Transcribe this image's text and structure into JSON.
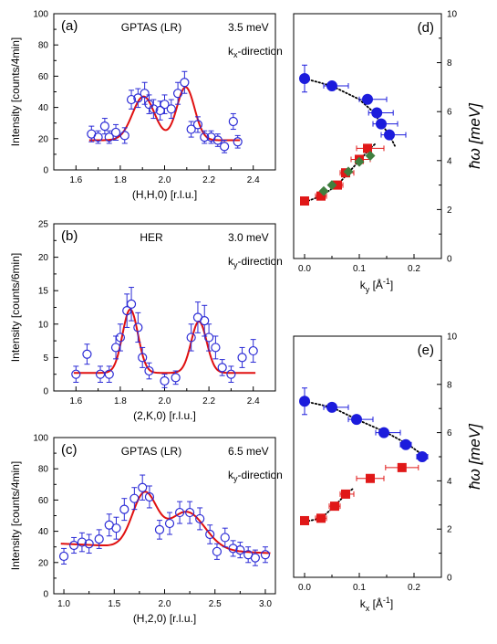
{
  "colors": {
    "open_marker": "#2b2bd6",
    "fit_line": "#e01010",
    "blue_marker": "#1c1cdc",
    "red_marker": "#e01818",
    "green_marker": "#3f7f3f",
    "dotted": "#000000"
  },
  "chart_data": [
    {
      "id": "a",
      "type": "scatter",
      "panel_label": "(a)",
      "annotations": [
        "GPTAS (LR)",
        "3.5 meV",
        "k",
        "x",
        "-direction"
      ],
      "xlabel": "(H,H,0) [r.l.u.]",
      "ylabel": "Intensity [counts/4min]",
      "xlim": [
        1.5,
        2.5
      ],
      "ylim": [
        0,
        100
      ],
      "xticks": [
        1.6,
        1.8,
        2.0,
        2.2,
        2.4
      ],
      "xtick_labels": [
        "1.6",
        "1.8",
        "2.0",
        "2.2",
        "2.4"
      ],
      "yticks": [
        0,
        20,
        40,
        60,
        80,
        100
      ],
      "ytick_labels": [
        "0",
        "20",
        "40",
        "60",
        "80",
        "100"
      ],
      "points": [
        [
          1.67,
          23,
          5
        ],
        [
          1.7,
          21,
          4
        ],
        [
          1.73,
          28,
          5
        ],
        [
          1.75,
          21,
          4
        ],
        [
          1.78,
          24,
          5
        ],
        [
          1.82,
          22,
          5
        ],
        [
          1.85,
          45,
          6
        ],
        [
          1.88,
          46,
          6
        ],
        [
          1.91,
          49,
          7
        ],
        [
          1.93,
          42,
          6
        ],
        [
          1.95,
          39,
          6
        ],
        [
          1.98,
          38,
          6
        ],
        [
          2.0,
          42,
          6
        ],
        [
          2.03,
          39,
          6
        ],
        [
          2.06,
          49,
          7
        ],
        [
          2.09,
          56,
          7
        ],
        [
          2.12,
          26,
          5
        ],
        [
          2.15,
          29,
          5
        ],
        [
          2.18,
          21,
          4
        ],
        [
          2.21,
          21,
          4
        ],
        [
          2.24,
          19,
          4
        ],
        [
          2.27,
          15,
          4
        ],
        [
          2.31,
          31,
          5
        ],
        [
          2.33,
          18,
          4
        ]
      ],
      "fit": {
        "baseline": 19,
        "peaks": [
          [
            1.905,
            28,
            0.05
          ],
          [
            2.095,
            34,
            0.04
          ]
        ],
        "x_range": [
          1.66,
          2.34
        ],
        "dip_extra": [
          2.0,
          -2
        ]
      }
    },
    {
      "id": "b",
      "type": "scatter",
      "panel_label": "(b)",
      "annotations": [
        "HER",
        "3.0 meV",
        "k",
        "y",
        "-direction"
      ],
      "xlabel": "(2,K,0) [r.l.u.]",
      "ylabel": "Intensity [counts/6min]",
      "xlim": [
        1.5,
        2.5
      ],
      "ylim": [
        0,
        25
      ],
      "xticks": [
        1.6,
        1.8,
        2.0,
        2.2,
        2.4
      ],
      "xtick_labels": [
        "1.6",
        "1.8",
        "2.0",
        "2.2",
        "2.4"
      ],
      "yticks": [
        0,
        5,
        10,
        15,
        20,
        25
      ],
      "ytick_labels": [
        "0",
        "5",
        "10",
        "15",
        "20",
        "25"
      ],
      "points": [
        [
          1.6,
          2.5,
          1.2
        ],
        [
          1.65,
          5.5,
          1.5
        ],
        [
          1.71,
          2.5,
          1.2
        ],
        [
          1.75,
          2.5,
          1.2
        ],
        [
          1.78,
          6.5,
          1.7
        ],
        [
          1.8,
          8.0,
          2.0
        ],
        [
          1.83,
          12.0,
          2.5
        ],
        [
          1.85,
          13.0,
          2.5
        ],
        [
          1.88,
          9.5,
          2.2
        ],
        [
          1.9,
          5.0,
          1.5
        ],
        [
          1.93,
          3.0,
          1.2
        ],
        [
          2.0,
          1.5,
          1.0
        ],
        [
          2.05,
          2.0,
          1.0
        ],
        [
          2.12,
          8.0,
          2.0
        ],
        [
          2.15,
          11.0,
          2.3
        ],
        [
          2.18,
          10.5,
          2.3
        ],
        [
          2.2,
          8.0,
          2.0
        ],
        [
          2.23,
          6.5,
          1.7
        ],
        [
          2.26,
          3.5,
          1.2
        ],
        [
          2.3,
          2.5,
          1.2
        ],
        [
          2.35,
          5.0,
          1.5
        ],
        [
          2.4,
          6.0,
          1.7
        ]
      ],
      "fit": {
        "baseline": 2.7,
        "peaks": [
          [
            1.845,
            9.5,
            0.035
          ],
          [
            2.155,
            7.7,
            0.035
          ]
        ],
        "x_range": [
          1.59,
          2.41
        ],
        "dip_extra": [
          2.0,
          0
        ]
      }
    },
    {
      "id": "c",
      "type": "scatter",
      "panel_label": "(c)",
      "annotations": [
        "GPTAS (LR)",
        "6.5 meV",
        "k",
        "y",
        "-direction"
      ],
      "xlabel": "(H,2,0) [r.l.u.]",
      "ylabel": "Intensity [counts/4min]",
      "xlim": [
        0.9,
        3.1
      ],
      "ylim": [
        0,
        100
      ],
      "xticks": [
        1.0,
        1.5,
        2.0,
        2.5,
        3.0
      ],
      "xtick_labels": [
        "1.0",
        "1.5",
        "2.0",
        "2.5",
        "3.0"
      ],
      "yticks": [
        0,
        20,
        40,
        60,
        80,
        100
      ],
      "ytick_labels": [
        "0",
        "20",
        "40",
        "60",
        "80",
        "100"
      ],
      "points": [
        [
          1.0,
          24,
          5
        ],
        [
          1.1,
          31,
          5
        ],
        [
          1.18,
          33,
          6
        ],
        [
          1.25,
          32,
          6
        ],
        [
          1.35,
          35,
          6
        ],
        [
          1.45,
          44,
          7
        ],
        [
          1.52,
          42,
          7
        ],
        [
          1.6,
          54,
          7
        ],
        [
          1.7,
          61,
          7
        ],
        [
          1.78,
          68,
          8
        ],
        [
          1.85,
          62,
          7
        ],
        [
          1.95,
          41,
          6
        ],
        [
          2.05,
          45,
          7
        ],
        [
          2.15,
          52,
          7
        ],
        [
          2.25,
          52,
          7
        ],
        [
          2.35,
          48,
          7
        ],
        [
          2.45,
          38,
          6
        ],
        [
          2.52,
          27,
          5
        ],
        [
          2.6,
          36,
          6
        ],
        [
          2.68,
          29,
          5
        ],
        [
          2.75,
          28,
          5
        ],
        [
          2.83,
          25,
          5
        ],
        [
          2.9,
          23,
          5
        ],
        [
          3.0,
          25,
          5
        ]
      ],
      "fit": {
        "baseline": 27,
        "peaks": [
          [
            1.8,
            34,
            0.12
          ],
          [
            2.22,
            24,
            0.18
          ]
        ],
        "x_range": [
          0.97,
          3.05
        ],
        "slope": [
          1.0,
          32,
          3.05,
          26
        ]
      }
    },
    {
      "id": "d",
      "type": "scatter",
      "panel_label": "(d)",
      "xlabel": "k",
      "xlabel_sub": "y",
      "xlabel_unit": " [Å",
      "xlabel_sup": "-1",
      "xlabel_end": "]",
      "ylabel": "ħω [meV]",
      "xlim": [
        -0.02,
        0.25
      ],
      "ylim": [
        0,
        10
      ],
      "xticks": [
        0.0,
        0.1,
        0.2
      ],
      "xtick_labels": [
        "0.0",
        "0.1",
        "0.2"
      ],
      "yticks": [
        0,
        2,
        4,
        6,
        8,
        10
      ],
      "ytick_labels": [
        "0",
        "2",
        "4",
        "6",
        "8",
        "10"
      ],
      "series": [
        {
          "marker": "blue-circle",
          "points": [
            [
              0.0,
              7.35,
              0,
              0,
              0.55
            ],
            [
              0.05,
              7.05,
              0.015,
              0.03,
              0
            ],
            [
              0.115,
              6.5,
              0.015,
              0.035,
              0
            ],
            [
              0.132,
              5.95,
              0.015,
              0.03,
              0
            ],
            [
              0.14,
              5.5,
              0.015,
              0.03,
              0
            ],
            [
              0.155,
              5.05,
              0.015,
              0.03,
              0
            ]
          ]
        },
        {
          "marker": "red-square",
          "points": [
            [
              0.0,
              2.35,
              0,
              0,
              0
            ],
            [
              0.03,
              2.55,
              0.01,
              0.01,
              0
            ],
            [
              0.06,
              3.0,
              0.01,
              0.01,
              0
            ],
            [
              0.075,
              3.5,
              0.01,
              0.015,
              0
            ],
            [
              0.1,
              4.05,
              0.015,
              0.02,
              0
            ],
            [
              0.115,
              4.5,
              0.02,
              0.03,
              0
            ]
          ]
        },
        {
          "marker": "green-diamond",
          "points": [
            [
              0.035,
              2.75,
              0,
              0,
              0
            ],
            [
              0.05,
              3.0,
              0,
              0,
              0
            ],
            [
              0.08,
              3.55,
              0,
              0,
              0
            ],
            [
              0.1,
              3.95,
              0,
              0,
              0
            ],
            [
              0.12,
              4.2,
              0,
              0,
              0
            ]
          ]
        }
      ],
      "dotted_lines": [
        [
          [
            0.0,
            7.35
          ],
          [
            0.05,
            7.05
          ],
          [
            0.1,
            6.5
          ],
          [
            0.125,
            6.0
          ],
          [
            0.14,
            5.5
          ],
          [
            0.155,
            5.05
          ],
          [
            0.165,
            4.6
          ]
        ],
        [
          [
            0.0,
            2.3
          ],
          [
            0.03,
            2.55
          ],
          [
            0.06,
            3.0
          ],
          [
            0.08,
            3.5
          ],
          [
            0.1,
            4.0
          ],
          [
            0.12,
            4.5
          ],
          [
            0.13,
            4.7
          ]
        ]
      ]
    },
    {
      "id": "e",
      "type": "scatter",
      "panel_label": "(e)",
      "xlabel": "k",
      "xlabel_sub": "x",
      "xlabel_unit": " [Å",
      "xlabel_sup": "-1",
      "xlabel_end": "]",
      "ylabel": "ħω [meV]",
      "xlim": [
        -0.02,
        0.25
      ],
      "ylim": [
        0,
        10
      ],
      "xticks": [
        0.0,
        0.1,
        0.2
      ],
      "xtick_labels": [
        "0.0",
        "0.1",
        "0.2"
      ],
      "yticks": [
        0,
        2,
        4,
        6,
        8,
        10
      ],
      "ytick_labels": [
        "0",
        "2",
        "4",
        "6",
        "8",
        "10"
      ],
      "series": [
        {
          "marker": "blue-circle",
          "points": [
            [
              0.0,
              7.3,
              0,
              0,
              0.55
            ],
            [
              0.05,
              7.05,
              0.015,
              0.03,
              0
            ],
            [
              0.095,
              6.55,
              0.015,
              0.03,
              0
            ],
            [
              0.145,
              6.0,
              0.015,
              0.03,
              0
            ],
            [
              0.185,
              5.5,
              0.01,
              0.01,
              0
            ],
            [
              0.215,
              5.0,
              0.01,
              0.01,
              0
            ]
          ]
        },
        {
          "marker": "red-square",
          "points": [
            [
              0.0,
              2.35,
              0,
              0,
              0
            ],
            [
              0.03,
              2.45,
              0.01,
              0.01,
              0
            ],
            [
              0.055,
              2.95,
              0.01,
              0.01,
              0
            ],
            [
              0.075,
              3.45,
              0.01,
              0.015,
              0
            ],
            [
              0.12,
              4.1,
              0.025,
              0.025,
              0
            ],
            [
              0.178,
              4.55,
              0.03,
              0.03,
              0
            ]
          ]
        }
      ],
      "dotted_lines": [
        [
          [
            0.0,
            7.3
          ],
          [
            0.05,
            7.05
          ],
          [
            0.1,
            6.5
          ],
          [
            0.15,
            6.0
          ],
          [
            0.19,
            5.5
          ],
          [
            0.22,
            5.0
          ]
        ],
        [
          [
            0.0,
            2.3
          ],
          [
            0.03,
            2.45
          ],
          [
            0.055,
            2.95
          ],
          [
            0.075,
            3.45
          ],
          [
            0.09,
            3.7
          ]
        ]
      ]
    }
  ]
}
